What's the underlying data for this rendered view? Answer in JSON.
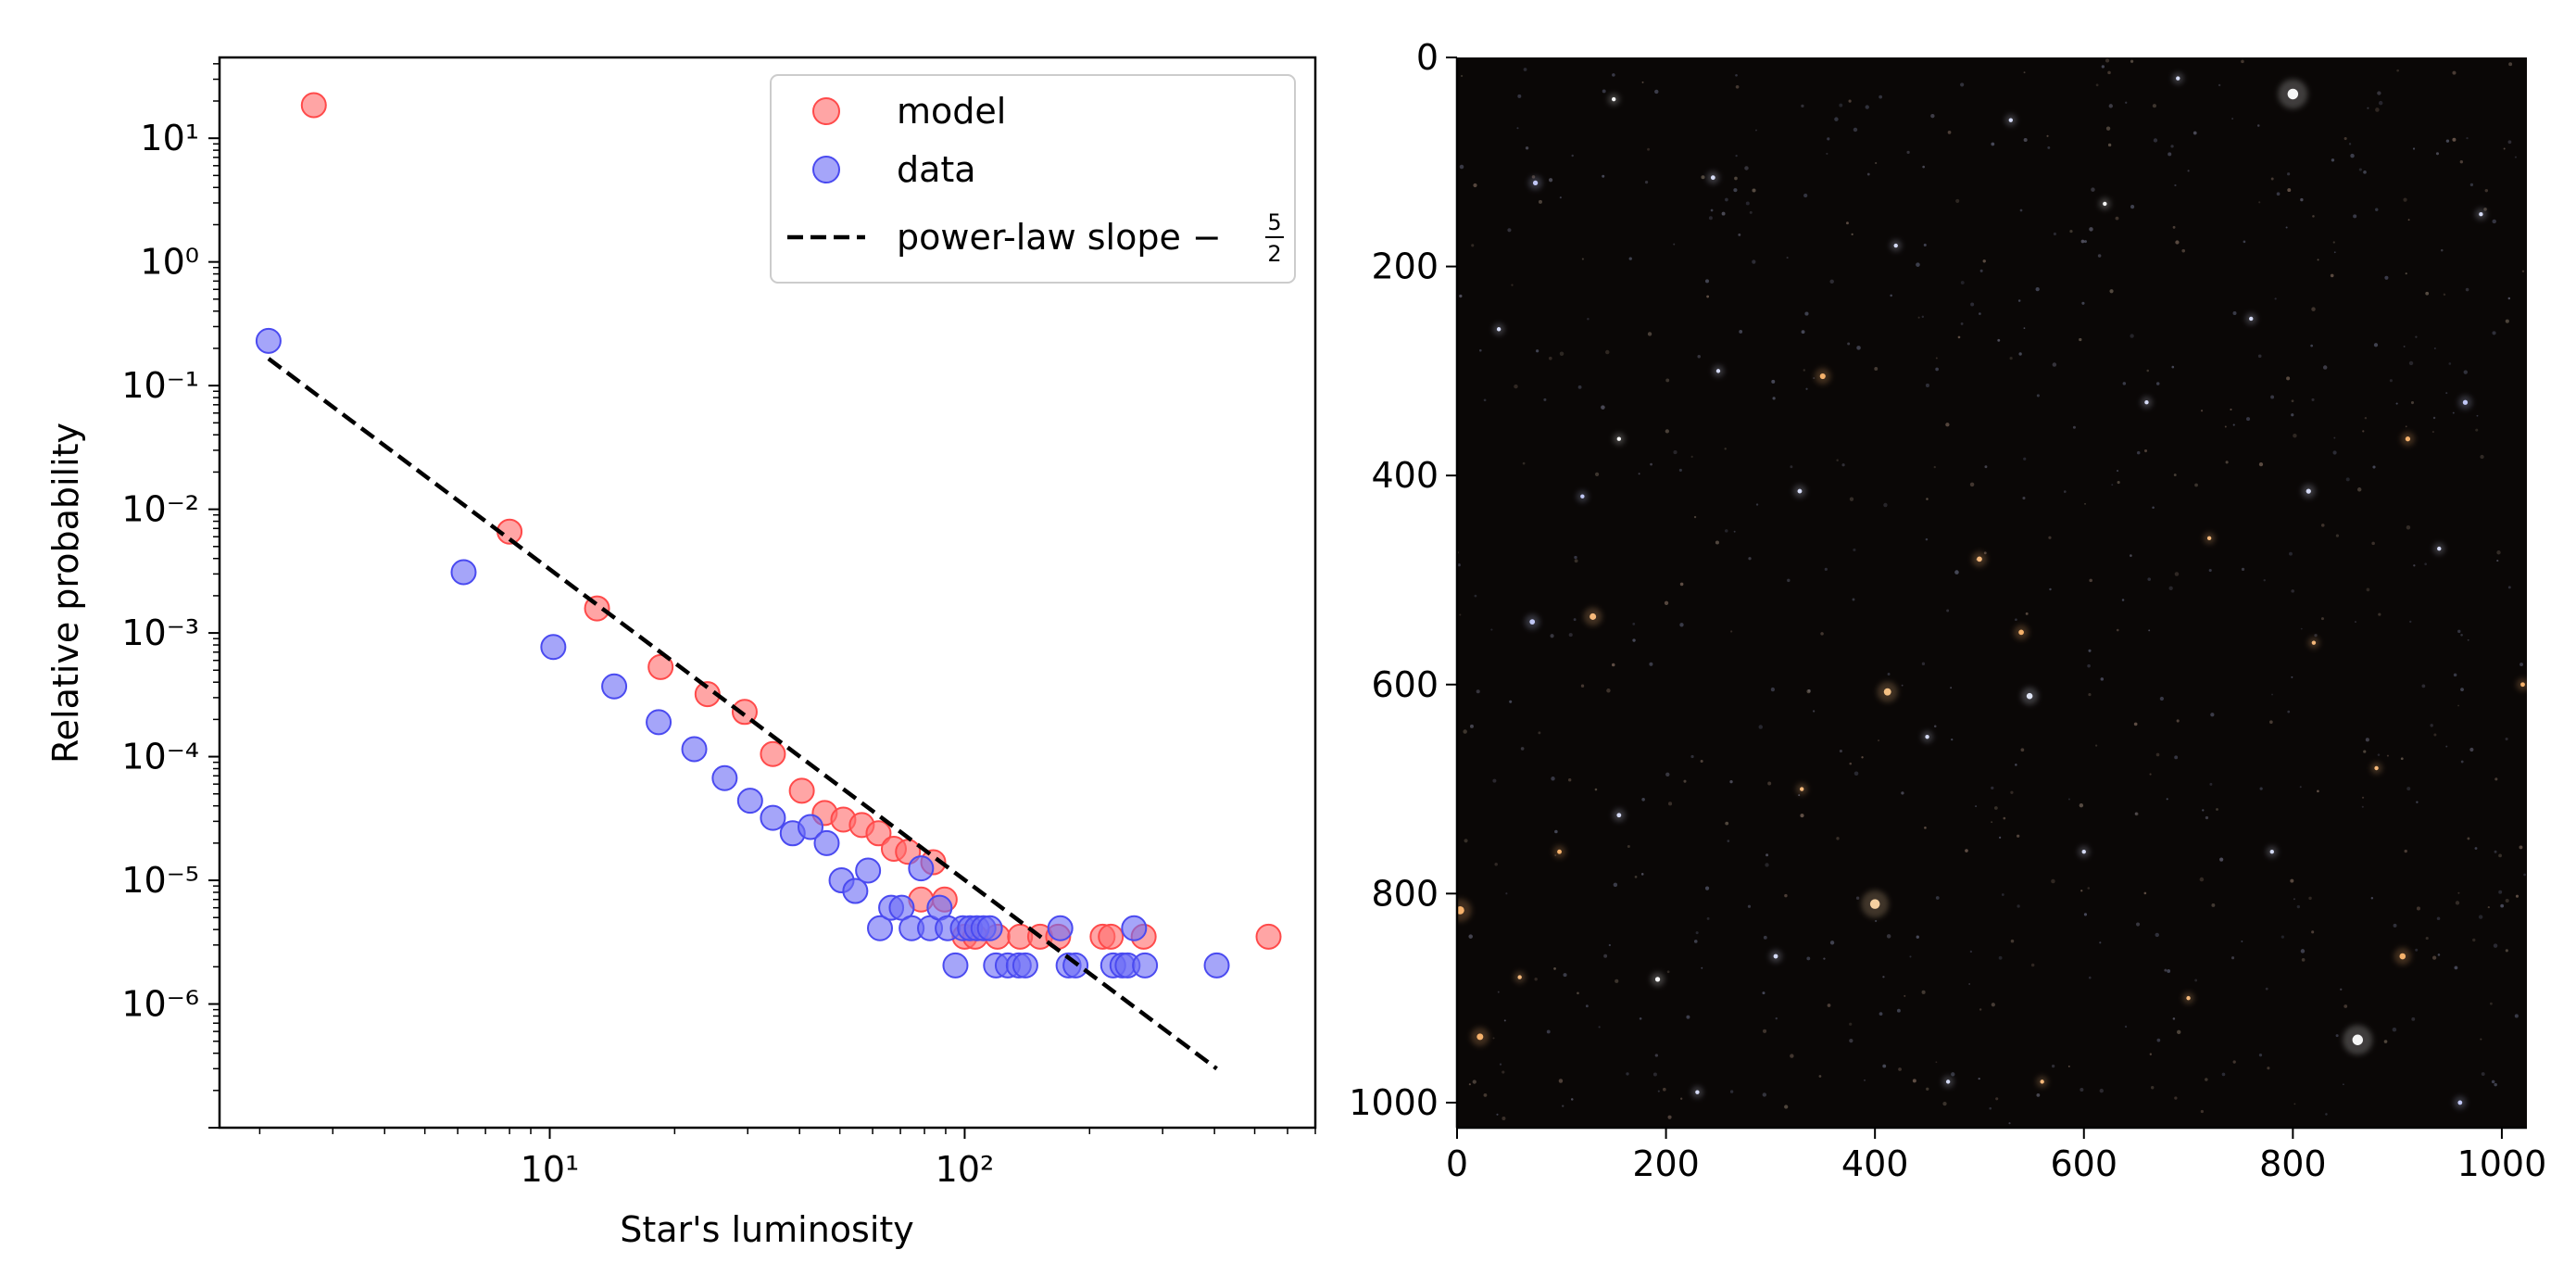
{
  "chart_data": [
    {
      "type": "scatter",
      "title": "",
      "xlabel": "Star's luminosity",
      "ylabel": "Relative probability",
      "xscale": "log",
      "yscale": "log",
      "xlim": [
        1.6,
        700
      ],
      "ylim": [
        1e-07,
        45
      ],
      "x_major_ticks": [
        {
          "value": 10,
          "label": "10¹"
        },
        {
          "value": 100,
          "label": "10²"
        }
      ],
      "y_major_ticks": [
        {
          "value": 1e-06,
          "label": "10⁻⁶"
        },
        {
          "value": 1e-05,
          "label": "10⁻⁵"
        },
        {
          "value": 0.0001,
          "label": "10⁻⁴"
        },
        {
          "value": 0.001,
          "label": "10⁻³"
        },
        {
          "value": 0.01,
          "label": "10⁻²"
        },
        {
          "value": 0.1,
          "label": "10⁻¹"
        },
        {
          "value": 1,
          "label": "10⁰"
        },
        {
          "value": 10,
          "label": "10¹"
        }
      ],
      "legend": {
        "placement": "upper right",
        "entries": [
          {
            "name": "model",
            "kind": "marker",
            "color": "#ff6e6e"
          },
          {
            "name": "data",
            "kind": "marker",
            "color": "#6e6ef5"
          },
          {
            "name": "power-law slope −5/2",
            "kind": "line",
            "color": "#000000",
            "slope_numerator": "5",
            "slope_denominator": "2"
          }
        ]
      },
      "series": [
        {
          "name": "model",
          "color": "#ff6e6e",
          "points": [
            [
              2.7,
              18.5
            ],
            [
              8.0,
              0.0066
            ],
            [
              13.0,
              0.00158
            ],
            [
              18.5,
              0.00053
            ],
            [
              24.0,
              0.00032
            ],
            [
              29.5,
              0.00023
            ],
            [
              34.5,
              0.000105
            ],
            [
              40.5,
              5.3e-05
            ],
            [
              46.0,
              3.5e-05
            ],
            [
              51.0,
              3.1e-05
            ],
            [
              56.5,
              2.8e-05
            ],
            [
              62.0,
              2.4e-05
            ],
            [
              67.5,
              1.8e-05
            ],
            [
              73.0,
              1.7e-05
            ],
            [
              78.5,
              7e-06
            ],
            [
              84.0,
              1.4e-05
            ],
            [
              89.5,
              7e-06
            ],
            [
              100,
              3.5e-06
            ],
            [
              106,
              3.5e-06
            ],
            [
              120,
              3.5e-06
            ],
            [
              136,
              3.5e-06
            ],
            [
              152,
              3.5e-06
            ],
            [
              168,
              3.5e-06
            ],
            [
              215,
              3.5e-06
            ],
            [
              225,
              3.5e-06
            ],
            [
              270,
              3.5e-06
            ],
            [
              540,
              3.5e-06
            ]
          ]
        },
        {
          "name": "data",
          "color": "#6e6ef5",
          "points": [
            [
              2.1,
              0.23
            ],
            [
              6.2,
              0.0031
            ],
            [
              10.2,
              0.00077
            ],
            [
              14.3,
              0.00037
            ],
            [
              18.3,
              0.00019
            ],
            [
              22.3,
              0.000115
            ],
            [
              26.4,
              6.7e-05
            ],
            [
              30.4,
              4.4e-05
            ],
            [
              34.5,
              3.2e-05
            ],
            [
              38.5,
              2.4e-05
            ],
            [
              42.5,
              2.7e-05
            ],
            [
              46.5,
              2e-05
            ],
            [
              50.5,
              1e-05
            ],
            [
              54.5,
              8.2e-06
            ],
            [
              58.5,
              1.2e-05
            ],
            [
              62.5,
              4.1e-06
            ],
            [
              66.5,
              6e-06
            ],
            [
              70.5,
              6e-06
            ],
            [
              74.5,
              4.1e-06
            ],
            [
              78.5,
              1.25e-05
            ],
            [
              82.5,
              4.1e-06
            ],
            [
              87.0,
              6e-06
            ],
            [
              91.0,
              4.1e-06
            ],
            [
              95.0,
              2.05e-06
            ],
            [
              99.0,
              4.1e-06
            ],
            [
              103,
              4.1e-06
            ],
            [
              107,
              4.1e-06
            ],
            [
              111,
              4.1e-06
            ],
            [
              115,
              4.1e-06
            ],
            [
              119,
              2.05e-06
            ],
            [
              127,
              2.05e-06
            ],
            [
              135,
              2.05e-06
            ],
            [
              140,
              2.05e-06
            ],
            [
              170,
              4.1e-06
            ],
            [
              178,
              2.05e-06
            ],
            [
              185,
              2.05e-06
            ],
            [
              228,
              2.05e-06
            ],
            [
              240,
              2.05e-06
            ],
            [
              247,
              2.05e-06
            ],
            [
              256,
              4.1e-06
            ],
            [
              272,
              2.05e-06
            ],
            [
              405,
              2.05e-06
            ]
          ]
        },
        {
          "name": "power-law slope −5/2",
          "color": "#000000",
          "style": "dashed",
          "points": [
            [
              2.1,
              0.165
            ],
            [
              405,
              3e-07
            ]
          ]
        }
      ]
    },
    {
      "type": "heatmap",
      "description_kind": "star-field image",
      "xlim": [
        0,
        1024
      ],
      "ylim": [
        1024,
        0
      ],
      "x_ticks": [
        0,
        200,
        400,
        600,
        800,
        1000
      ],
      "y_ticks": [
        0,
        200,
        400,
        600,
        800,
        1000
      ],
      "background_color": "#0a0706",
      "stars": [
        {
          "x": 800,
          "y": 35,
          "r": 2.6,
          "color": "#ffffff"
        },
        {
          "x": 862,
          "y": 940,
          "r": 2.6,
          "color": "#ffffff"
        },
        {
          "x": 400,
          "y": 810,
          "r": 2.4,
          "color": "#ffd9a8"
        },
        {
          "x": 412,
          "y": 607,
          "r": 1.8,
          "color": "#ffc98a"
        },
        {
          "x": 548,
          "y": 611,
          "r": 1.5,
          "color": "#e8eeff"
        },
        {
          "x": 3,
          "y": 816,
          "r": 2.0,
          "color": "#ffb870"
        },
        {
          "x": 22,
          "y": 937,
          "r": 1.6,
          "color": "#ffb870"
        },
        {
          "x": 130,
          "y": 535,
          "r": 1.6,
          "color": "#ffc080"
        },
        {
          "x": 72,
          "y": 540,
          "r": 1.3,
          "color": "#c8d0ff"
        },
        {
          "x": 350,
          "y": 305,
          "r": 1.4,
          "color": "#ffb870"
        },
        {
          "x": 540,
          "y": 550,
          "r": 1.3,
          "color": "#ffb870"
        },
        {
          "x": 905,
          "y": 860,
          "r": 1.5,
          "color": "#ffb870"
        },
        {
          "x": 910,
          "y": 365,
          "r": 1.2,
          "color": "#ffb870"
        },
        {
          "x": 815,
          "y": 415,
          "r": 1.2,
          "color": "#dde4ff"
        },
        {
          "x": 965,
          "y": 330,
          "r": 1.2,
          "color": "#c8d0ff"
        },
        {
          "x": 500,
          "y": 480,
          "r": 1.3,
          "color": "#ffc080"
        },
        {
          "x": 155,
          "y": 365,
          "r": 1.0,
          "color": "#ffffff"
        },
        {
          "x": 245,
          "y": 115,
          "r": 1.1,
          "color": "#dde4ff"
        },
        {
          "x": 75,
          "y": 120,
          "r": 1.2,
          "color": "#c8d0ff"
        },
        {
          "x": 305,
          "y": 860,
          "r": 1.1,
          "color": "#dde4ff"
        },
        {
          "x": 192,
          "y": 882,
          "r": 1.2,
          "color": "#ffffff"
        },
        {
          "x": 155,
          "y": 725,
          "r": 1.1,
          "color": "#dde4ff"
        },
        {
          "x": 98,
          "y": 760,
          "r": 1.1,
          "color": "#ffb870"
        },
        {
          "x": 960,
          "y": 1000,
          "r": 1.1,
          "color": "#c8d0ff"
        },
        {
          "x": 1020,
          "y": 600,
          "r": 1.1,
          "color": "#ffb870"
        },
        {
          "x": 328,
          "y": 415,
          "r": 1.1,
          "color": "#dde4ff"
        },
        {
          "x": 620,
          "y": 140,
          "r": 1.0,
          "color": "#ffffff"
        },
        {
          "x": 700,
          "y": 900,
          "r": 1.0,
          "color": "#ffc080"
        },
        {
          "x": 780,
          "y": 760,
          "r": 1.0,
          "color": "#dde4ff"
        },
        {
          "x": 470,
          "y": 980,
          "r": 1.0,
          "color": "#dde4ff"
        },
        {
          "x": 560,
          "y": 980,
          "r": 1.0,
          "color": "#ffc080"
        },
        {
          "x": 250,
          "y": 300,
          "r": 1.0,
          "color": "#dde4ff"
        },
        {
          "x": 720,
          "y": 460,
          "r": 1.0,
          "color": "#ffc080"
        },
        {
          "x": 660,
          "y": 330,
          "r": 1.0,
          "color": "#dde4ff"
        },
        {
          "x": 40,
          "y": 260,
          "r": 1.0,
          "color": "#dde4ff"
        },
        {
          "x": 120,
          "y": 420,
          "r": 1.0,
          "color": "#c8d0ff"
        },
        {
          "x": 420,
          "y": 180,
          "r": 1.0,
          "color": "#dde4ff"
        },
        {
          "x": 980,
          "y": 150,
          "r": 1.0,
          "color": "#dde4ff"
        },
        {
          "x": 880,
          "y": 680,
          "r": 1.0,
          "color": "#ffc080"
        },
        {
          "x": 600,
          "y": 760,
          "r": 1.0,
          "color": "#dde4ff"
        },
        {
          "x": 330,
          "y": 700,
          "r": 1.0,
          "color": "#ffc080"
        },
        {
          "x": 230,
          "y": 990,
          "r": 1.0,
          "color": "#dde4ff"
        },
        {
          "x": 760,
          "y": 250,
          "r": 1.0,
          "color": "#dde4ff"
        },
        {
          "x": 150,
          "y": 40,
          "r": 1.0,
          "color": "#ffffff"
        },
        {
          "x": 530,
          "y": 60,
          "r": 1.0,
          "color": "#dde4ff"
        },
        {
          "x": 690,
          "y": 20,
          "r": 1.0,
          "color": "#dde4ff"
        },
        {
          "x": 60,
          "y": 880,
          "r": 1.0,
          "color": "#ffc080"
        },
        {
          "x": 450,
          "y": 650,
          "r": 1.0,
          "color": "#dde4ff"
        },
        {
          "x": 820,
          "y": 560,
          "r": 1.0,
          "color": "#ffc080"
        },
        {
          "x": 940,
          "y": 470,
          "r": 1.0,
          "color": "#dde4ff"
        }
      ]
    }
  ]
}
